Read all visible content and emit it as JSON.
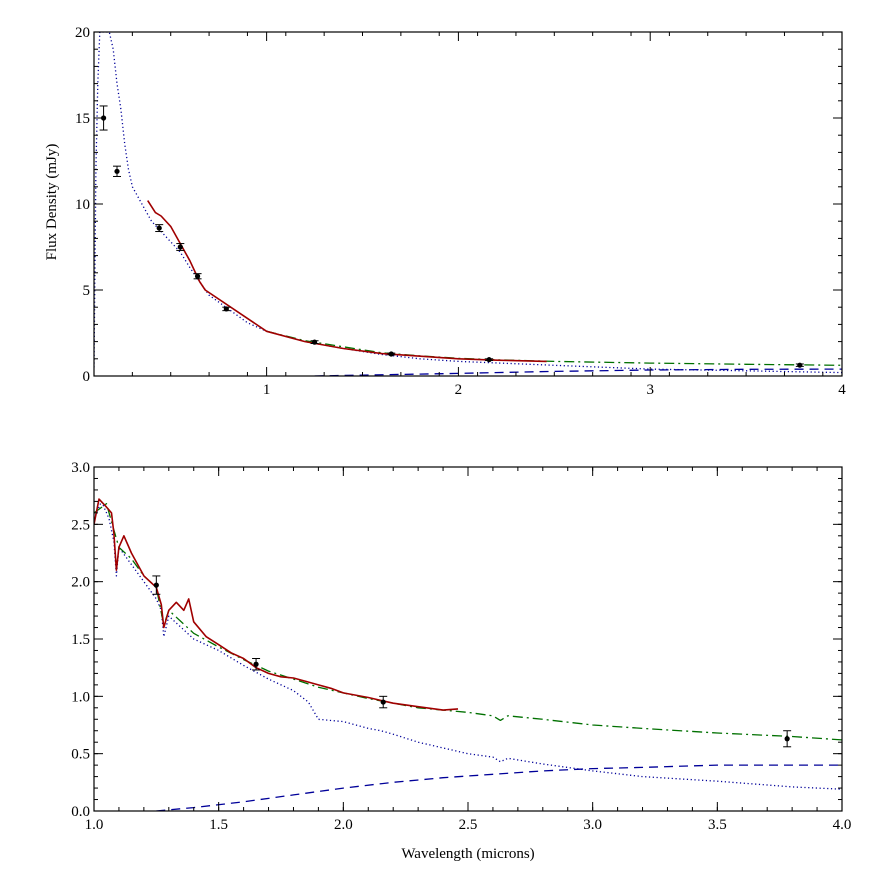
{
  "chart_data": [
    {
      "type": "line",
      "panel": "top",
      "xlabel": "",
      "ylabel": "Flux Density (mJy)",
      "xlim": [
        0.1,
        4.0
      ],
      "ylim": [
        0,
        20
      ],
      "x_ticks": [
        {
          "value": 1,
          "label": "1"
        },
        {
          "value": 2,
          "label": "2"
        },
        {
          "value": 3,
          "label": "3"
        },
        {
          "value": 4,
          "label": "4"
        }
      ],
      "y_ticks": [
        {
          "value": 0,
          "label": "0"
        },
        {
          "value": 5,
          "label": "5"
        },
        {
          "value": 10,
          "label": "10"
        },
        {
          "value": 15,
          "label": "15"
        },
        {
          "value": 20,
          "label": "20"
        }
      ],
      "colors": {
        "observed_spectrum": "#a00000",
        "model_total": "#007000",
        "stellar_model": "#000099",
        "dust_component": "#000099",
        "photometry": "#000000"
      },
      "series": [
        {
          "style": "dotted",
          "color": "#000099",
          "role": "stellar model",
          "points": [
            [
              0.1,
              0.5
            ],
            [
              0.11,
              12
            ],
            [
              0.12,
              17
            ],
            [
              0.13,
              20
            ],
            [
              0.14,
              20
            ],
            [
              0.16,
              20
            ],
            [
              0.18,
              20
            ],
            [
              0.2,
              19
            ],
            [
              0.22,
              17
            ],
            [
              0.24,
              15.5
            ],
            [
              0.26,
              13.5
            ],
            [
              0.28,
              12
            ],
            [
              0.3,
              11
            ],
            [
              0.35,
              10
            ],
            [
              0.4,
              9
            ],
            [
              0.45,
              8.4
            ],
            [
              0.5,
              7.8
            ],
            [
              0.55,
              7.2
            ],
            [
              0.6,
              6.3
            ],
            [
              0.65,
              5.5
            ],
            [
              0.7,
              4.7
            ],
            [
              0.8,
              3.9
            ],
            [
              0.9,
              3.1
            ],
            [
              1.0,
              2.6
            ],
            [
              1.2,
              2.0
            ],
            [
              1.4,
              1.6
            ],
            [
              1.6,
              1.25
            ],
            [
              1.8,
              1.0
            ],
            [
              2.0,
              0.85
            ],
            [
              2.5,
              0.62
            ],
            [
              3.0,
              0.4
            ],
            [
              3.5,
              0.3
            ],
            [
              4.0,
              0.2
            ]
          ]
        },
        {
          "style": "dashed",
          "color": "#000099",
          "role": "dust component",
          "points": [
            [
              1.25,
              0.0
            ],
            [
              1.5,
              0.05
            ],
            [
              2.0,
              0.15
            ],
            [
              2.5,
              0.27
            ],
            [
              3.0,
              0.35
            ],
            [
              3.5,
              0.39
            ],
            [
              4.0,
              0.4
            ]
          ]
        },
        {
          "style": "dashdot",
          "color": "#007000",
          "role": "total model",
          "points": [
            [
              1.0,
              2.6
            ],
            [
              1.2,
              2.05
            ],
            [
              1.4,
              1.7
            ],
            [
              1.6,
              1.35
            ],
            [
              1.8,
              1.17
            ],
            [
              2.0,
              1.03
            ],
            [
              2.2,
              0.94
            ],
            [
              2.5,
              0.85
            ],
            [
              3.0,
              0.75
            ],
            [
              3.5,
              0.68
            ],
            [
              4.0,
              0.62
            ]
          ]
        },
        {
          "style": "solid",
          "color": "#a00000",
          "role": "observed spectrum",
          "points": [
            [
              0.38,
              10.2
            ],
            [
              0.42,
              9.5
            ],
            [
              0.45,
              9.3
            ],
            [
              0.5,
              8.7
            ],
            [
              0.55,
              7.7
            ],
            [
              0.6,
              6.7
            ],
            [
              0.65,
              5.5
            ],
            [
              0.68,
              5.0
            ],
            [
              1.0,
              2.6
            ],
            [
              1.2,
              2.0
            ],
            [
              1.4,
              1.6
            ],
            [
              1.6,
              1.3
            ],
            [
              1.8,
              1.15
            ],
            [
              2.0,
              1.0
            ],
            [
              2.2,
              0.92
            ],
            [
              2.46,
              0.85
            ]
          ]
        }
      ],
      "photometry": [
        {
          "x": 0.15,
          "y": 15.0,
          "err": 0.7
        },
        {
          "x": 0.22,
          "y": 11.9,
          "err": 0.3
        },
        {
          "x": 0.44,
          "y": 8.6,
          "err": 0.2
        },
        {
          "x": 0.55,
          "y": 7.5,
          "err": 0.2
        },
        {
          "x": 0.64,
          "y": 5.8,
          "err": 0.15
        },
        {
          "x": 0.79,
          "y": 3.9,
          "err": 0.1
        },
        {
          "x": 1.25,
          "y": 1.97,
          "err": 0.08
        },
        {
          "x": 1.65,
          "y": 1.28,
          "err": 0.05
        },
        {
          "x": 2.16,
          "y": 0.95,
          "err": 0.05
        },
        {
          "x": 3.78,
          "y": 0.63,
          "err": 0.07
        }
      ]
    },
    {
      "type": "line",
      "panel": "bottom",
      "xlabel": "Wavelength (microns)",
      "ylabel": "",
      "xlim": [
        1.0,
        4.0
      ],
      "ylim": [
        0.0,
        3.0
      ],
      "x_ticks": [
        {
          "value": 1.0,
          "label": "1.0"
        },
        {
          "value": 1.5,
          "label": "1.5"
        },
        {
          "value": 2.0,
          "label": "2.0"
        },
        {
          "value": 2.5,
          "label": "2.5"
        },
        {
          "value": 3.0,
          "label": "3.0"
        },
        {
          "value": 3.5,
          "label": "3.5"
        },
        {
          "value": 4.0,
          "label": "4.0"
        }
      ],
      "y_ticks": [
        {
          "value": 0.0,
          "label": "0.0"
        },
        {
          "value": 0.5,
          "label": "0.5"
        },
        {
          "value": 1.0,
          "label": "1.0"
        },
        {
          "value": 1.5,
          "label": "1.5"
        },
        {
          "value": 2.0,
          "label": "2.0"
        },
        {
          "value": 2.5,
          "label": "2.5"
        },
        {
          "value": 3.0,
          "label": "3.0"
        }
      ],
      "series": [
        {
          "style": "dotted",
          "color": "#000099",
          "role": "stellar model",
          "points": [
            [
              1.0,
              2.55
            ],
            [
              1.03,
              2.7
            ],
            [
              1.06,
              2.55
            ],
            [
              1.08,
              2.35
            ],
            [
              1.09,
              2.05
            ],
            [
              1.1,
              2.3
            ],
            [
              1.15,
              2.15
            ],
            [
              1.2,
              2.0
            ],
            [
              1.25,
              1.85
            ],
            [
              1.27,
              1.75
            ],
            [
              1.28,
              1.52
            ],
            [
              1.3,
              1.7
            ],
            [
              1.4,
              1.5
            ],
            [
              1.5,
              1.4
            ],
            [
              1.6,
              1.27
            ],
            [
              1.7,
              1.15
            ],
            [
              1.8,
              1.05
            ],
            [
              1.86,
              0.95
            ],
            [
              1.9,
              0.8
            ],
            [
              2.0,
              0.78
            ],
            [
              2.1,
              0.72
            ],
            [
              2.15,
              0.7
            ],
            [
              2.2,
              0.67
            ],
            [
              2.3,
              0.6
            ],
            [
              2.5,
              0.5
            ],
            [
              2.6,
              0.47
            ],
            [
              2.63,
              0.43
            ],
            [
              2.66,
              0.46
            ],
            [
              2.8,
              0.41
            ],
            [
              3.0,
              0.35
            ],
            [
              3.2,
              0.3
            ],
            [
              3.5,
              0.26
            ],
            [
              3.8,
              0.21
            ],
            [
              4.0,
              0.19
            ]
          ]
        },
        {
          "style": "dashed",
          "color": "#000099",
          "role": "dust component",
          "points": [
            [
              1.25,
              0.0
            ],
            [
              1.4,
              0.03
            ],
            [
              1.6,
              0.08
            ],
            [
              1.8,
              0.14
            ],
            [
              2.0,
              0.2
            ],
            [
              2.2,
              0.25
            ],
            [
              2.4,
              0.29
            ],
            [
              2.6,
              0.32
            ],
            [
              2.8,
              0.35
            ],
            [
              3.0,
              0.37
            ],
            [
              3.2,
              0.38
            ],
            [
              3.5,
              0.4
            ],
            [
              3.8,
              0.4
            ],
            [
              4.0,
              0.4
            ]
          ]
        },
        {
          "style": "dashdot",
          "color": "#007000",
          "role": "total model",
          "points": [
            [
              1.0,
              2.6
            ],
            [
              1.05,
              2.68
            ],
            [
              1.08,
              2.45
            ],
            [
              1.1,
              2.3
            ],
            [
              1.15,
              2.2
            ],
            [
              1.2,
              2.05
            ],
            [
              1.25,
              1.95
            ],
            [
              1.28,
              1.62
            ],
            [
              1.3,
              1.75
            ],
            [
              1.4,
              1.55
            ],
            [
              1.5,
              1.43
            ],
            [
              1.6,
              1.32
            ],
            [
              1.7,
              1.22
            ],
            [
              1.8,
              1.15
            ],
            [
              1.9,
              1.08
            ],
            [
              2.0,
              1.03
            ],
            [
              2.1,
              0.98
            ],
            [
              2.2,
              0.94
            ],
            [
              2.3,
              0.9
            ],
            [
              2.4,
              0.88
            ],
            [
              2.5,
              0.86
            ],
            [
              2.6,
              0.83
            ],
            [
              2.63,
              0.79
            ],
            [
              2.66,
              0.83
            ],
            [
              2.8,
              0.8
            ],
            [
              3.0,
              0.75
            ],
            [
              3.2,
              0.72
            ],
            [
              3.5,
              0.68
            ],
            [
              3.8,
              0.65
            ],
            [
              4.0,
              0.62
            ]
          ]
        },
        {
          "style": "solid",
          "color": "#a00000",
          "role": "observed spectrum",
          "points": [
            [
              1.0,
              2.5
            ],
            [
              1.02,
              2.72
            ],
            [
              1.05,
              2.65
            ],
            [
              1.07,
              2.6
            ],
            [
              1.08,
              2.42
            ],
            [
              1.09,
              2.1
            ],
            [
              1.1,
              2.3
            ],
            [
              1.12,
              2.4
            ],
            [
              1.15,
              2.25
            ],
            [
              1.2,
              2.05
            ],
            [
              1.25,
              1.95
            ],
            [
              1.27,
              1.8
            ],
            [
              1.28,
              1.6
            ],
            [
              1.3,
              1.75
            ],
            [
              1.33,
              1.82
            ],
            [
              1.36,
              1.75
            ],
            [
              1.38,
              1.85
            ],
            [
              1.4,
              1.65
            ],
            [
              1.45,
              1.52
            ],
            [
              1.5,
              1.45
            ],
            [
              1.55,
              1.38
            ],
            [
              1.6,
              1.33
            ],
            [
              1.65,
              1.25
            ],
            [
              1.7,
              1.2
            ],
            [
              1.75,
              1.17
            ],
            [
              1.8,
              1.16
            ],
            [
              1.85,
              1.13
            ],
            [
              1.9,
              1.1
            ],
            [
              1.95,
              1.07
            ],
            [
              2.0,
              1.03
            ],
            [
              2.1,
              0.99
            ],
            [
              2.2,
              0.94
            ],
            [
              2.3,
              0.91
            ],
            [
              2.4,
              0.88
            ],
            [
              2.46,
              0.89
            ]
          ]
        }
      ],
      "photometry": [
        {
          "x": 1.25,
          "y": 1.97,
          "err": 0.08
        },
        {
          "x": 1.65,
          "y": 1.28,
          "err": 0.05
        },
        {
          "x": 2.16,
          "y": 0.95,
          "err": 0.05
        },
        {
          "x": 3.78,
          "y": 0.63,
          "err": 0.07
        }
      ]
    }
  ]
}
